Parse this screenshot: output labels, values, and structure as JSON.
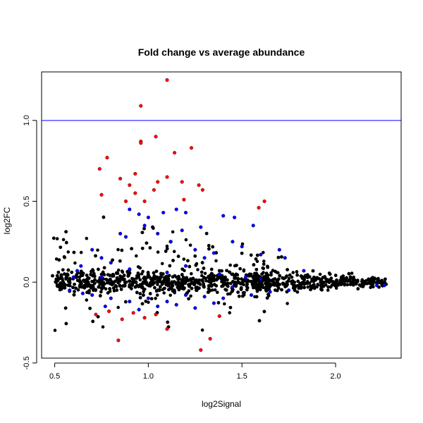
{
  "chart_data": {
    "type": "scatter",
    "title": "Fold change vs average abundance",
    "xlabel": "log2Signal",
    "ylabel": "log2FC",
    "xlim": [
      0.43,
      2.35
    ],
    "ylim": [
      -0.47,
      1.3
    ],
    "xticks": [
      0.5,
      1.0,
      1.5,
      2.0
    ],
    "xtick_labels": [
      "0.5",
      "1.0",
      "1.5",
      "2.0"
    ],
    "yticks": [
      -0.5,
      0.0,
      0.5,
      1.0
    ],
    "ytick_labels": [
      "-0.5",
      "0.0",
      "0.5",
      "1.0"
    ],
    "reference_line": {
      "y": 1.0,
      "color": "#0000ff"
    },
    "grid": false,
    "legend": "none",
    "colors": {
      "black": "#000000",
      "blue": "#0000ff",
      "red": "#ff0000"
    },
    "series": [
      {
        "color": "#ff0000",
        "points": [
          [
            1.1,
            1.25
          ],
          [
            0.96,
            1.09
          ],
          [
            1.04,
            0.9
          ],
          [
            0.96,
            0.87
          ],
          [
            0.96,
            0.86
          ],
          [
            0.78,
            0.77
          ],
          [
            1.23,
            0.83
          ],
          [
            1.14,
            0.8
          ],
          [
            0.74,
            0.7
          ],
          [
            0.93,
            0.67
          ],
          [
            1.05,
            0.62
          ],
          [
            1.1,
            0.65
          ],
          [
            0.85,
            0.64
          ],
          [
            0.9,
            0.6
          ],
          [
            1.18,
            0.62
          ],
          [
            1.27,
            0.6
          ],
          [
            0.75,
            0.54
          ],
          [
            0.93,
            0.55
          ],
          [
            1.03,
            0.57
          ],
          [
            1.29,
            0.57
          ],
          [
            0.98,
            0.5
          ],
          [
            1.62,
            0.5
          ],
          [
            1.59,
            0.46
          ],
          [
            0.88,
            0.5
          ],
          [
            1.19,
            0.51
          ],
          [
            0.79,
            -0.18
          ],
          [
            0.84,
            -0.36
          ],
          [
            0.92,
            -0.19
          ],
          [
            1.04,
            -0.2
          ],
          [
            1.28,
            -0.42
          ],
          [
            1.33,
            -0.35
          ],
          [
            1.1,
            -0.29
          ],
          [
            0.86,
            -0.23
          ],
          [
            0.98,
            -0.22
          ],
          [
            0.72,
            -0.2
          ],
          [
            1.38,
            -0.21
          ]
        ]
      },
      {
        "color": "#0000ff",
        "points": [
          [
            0.9,
            0.45
          ],
          [
            0.95,
            0.42
          ],
          [
            1.0,
            0.4
          ],
          [
            1.08,
            0.43
          ],
          [
            1.15,
            0.45
          ],
          [
            1.2,
            0.43
          ],
          [
            1.4,
            0.41
          ],
          [
            1.46,
            0.4
          ],
          [
            1.56,
            0.35
          ],
          [
            1.7,
            0.2
          ],
          [
            1.73,
            0.15
          ],
          [
            1.83,
            0.07
          ],
          [
            2.22,
            -0.02
          ],
          [
            2.26,
            -0.02
          ],
          [
            0.85,
            0.3
          ],
          [
            0.88,
            0.28
          ],
          [
            1.05,
            0.3
          ],
          [
            1.12,
            0.25
          ],
          [
            1.25,
            0.2
          ],
          [
            1.3,
            0.15
          ],
          [
            1.35,
            0.18
          ],
          [
            1.45,
            0.25
          ],
          [
            1.5,
            0.22
          ],
          [
            1.6,
            0.17
          ],
          [
            0.7,
            0.2
          ],
          [
            0.75,
            0.15
          ],
          [
            0.8,
            0.12
          ],
          [
            0.62,
            0.07
          ],
          [
            0.58,
            -0.05
          ],
          [
            0.65,
            -0.07
          ],
          [
            0.7,
            -0.08
          ],
          [
            0.8,
            -0.1
          ],
          [
            0.9,
            -0.12
          ],
          [
            1.0,
            -0.1
          ],
          [
            1.1,
            -0.12
          ],
          [
            1.2,
            -0.08
          ],
          [
            1.3,
            -0.09
          ],
          [
            1.4,
            -0.1
          ],
          [
            1.55,
            -0.08
          ],
          [
            1.65,
            -0.06
          ],
          [
            1.75,
            -0.05
          ],
          [
            0.95,
            -0.17
          ],
          [
            1.05,
            -0.15
          ],
          [
            1.15,
            -0.14
          ],
          [
            1.25,
            -0.16
          ],
          [
            0.6,
            0.03
          ],
          [
            0.64,
            0.1
          ],
          [
            0.75,
            0.03
          ],
          [
            1.38,
            0.05
          ],
          [
            1.52,
            0.03
          ],
          [
            0.9,
            0.08
          ],
          [
            1.1,
            0.06
          ],
          [
            1.2,
            0.1
          ],
          [
            1.45,
            -0.03
          ],
          [
            1.6,
            0.02
          ],
          [
            0.77,
            -0.15
          ],
          [
            1.35,
            -0.13
          ],
          [
            0.98,
            0.35
          ],
          [
            1.18,
            0.32
          ],
          [
            1.28,
            0.34
          ]
        ]
      }
    ]
  }
}
